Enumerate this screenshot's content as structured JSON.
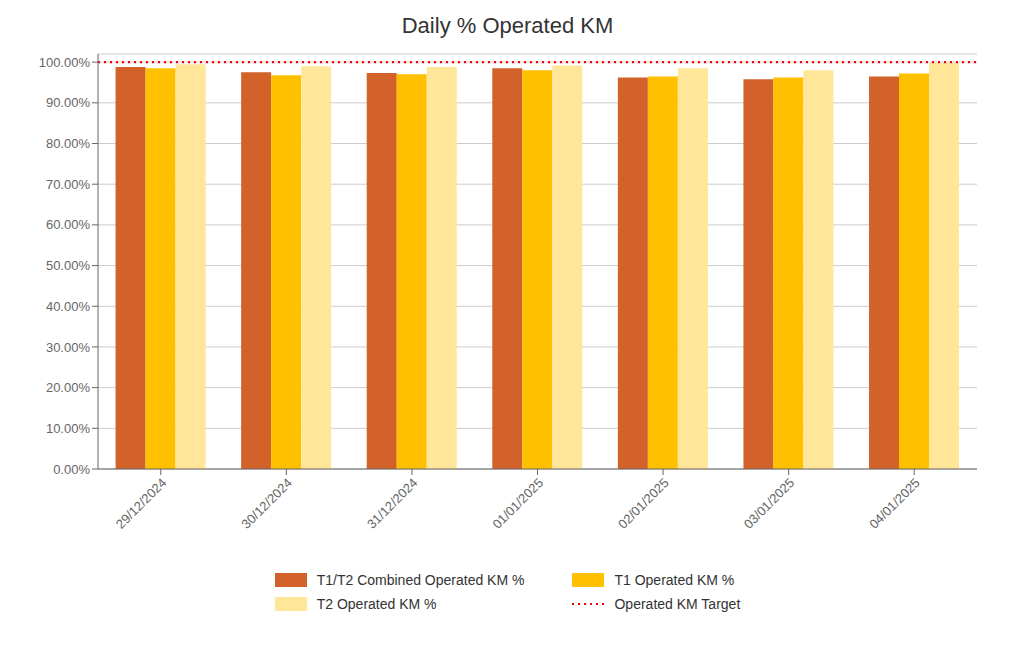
{
  "chart_data": {
    "type": "bar",
    "title": "Daily % Operated KM",
    "categories": [
      "29/12/2024",
      "30/12/2024",
      "31/12/2024",
      "01/01/2025",
      "02/01/2025",
      "03/01/2025",
      "04/01/2025"
    ],
    "series": [
      {
        "name": "T1/T2 Combined Operated KM %",
        "color": "#D2622A",
        "values": [
          98.8,
          97.5,
          97.3,
          98.5,
          96.2,
          95.8,
          96.5
        ]
      },
      {
        "name": "T1 Operated KM %",
        "color": "#FFC000",
        "values": [
          98.5,
          96.8,
          97.0,
          98.0,
          96.5,
          96.2,
          97.2
        ]
      },
      {
        "name": "T2 Operated KM %",
        "color": "#FFE699",
        "values": [
          99.5,
          99.0,
          98.8,
          99.2,
          98.5,
          98.0,
          99.8
        ]
      }
    ],
    "target_line": {
      "name": "Operated KM Target",
      "value": 100.0,
      "color": "#FF0000",
      "line_style": "dotted"
    },
    "ylim": [
      0,
      102
    ],
    "yticks": [
      {
        "value": 0,
        "label": "0.00%"
      },
      {
        "value": 10,
        "label": "10.00%"
      },
      {
        "value": 20,
        "label": "20.00%"
      },
      {
        "value": 30,
        "label": "30.00%"
      },
      {
        "value": 40,
        "label": "40.00%"
      },
      {
        "value": 50,
        "label": "50.00%"
      },
      {
        "value": 60,
        "label": "60.00%"
      },
      {
        "value": 70,
        "label": "70.00%"
      },
      {
        "value": 80,
        "label": "80.00%"
      },
      {
        "value": 90,
        "label": "90.00%"
      },
      {
        "value": 100,
        "label": "100.00%"
      }
    ],
    "grid": "y",
    "legend": "bottom"
  }
}
